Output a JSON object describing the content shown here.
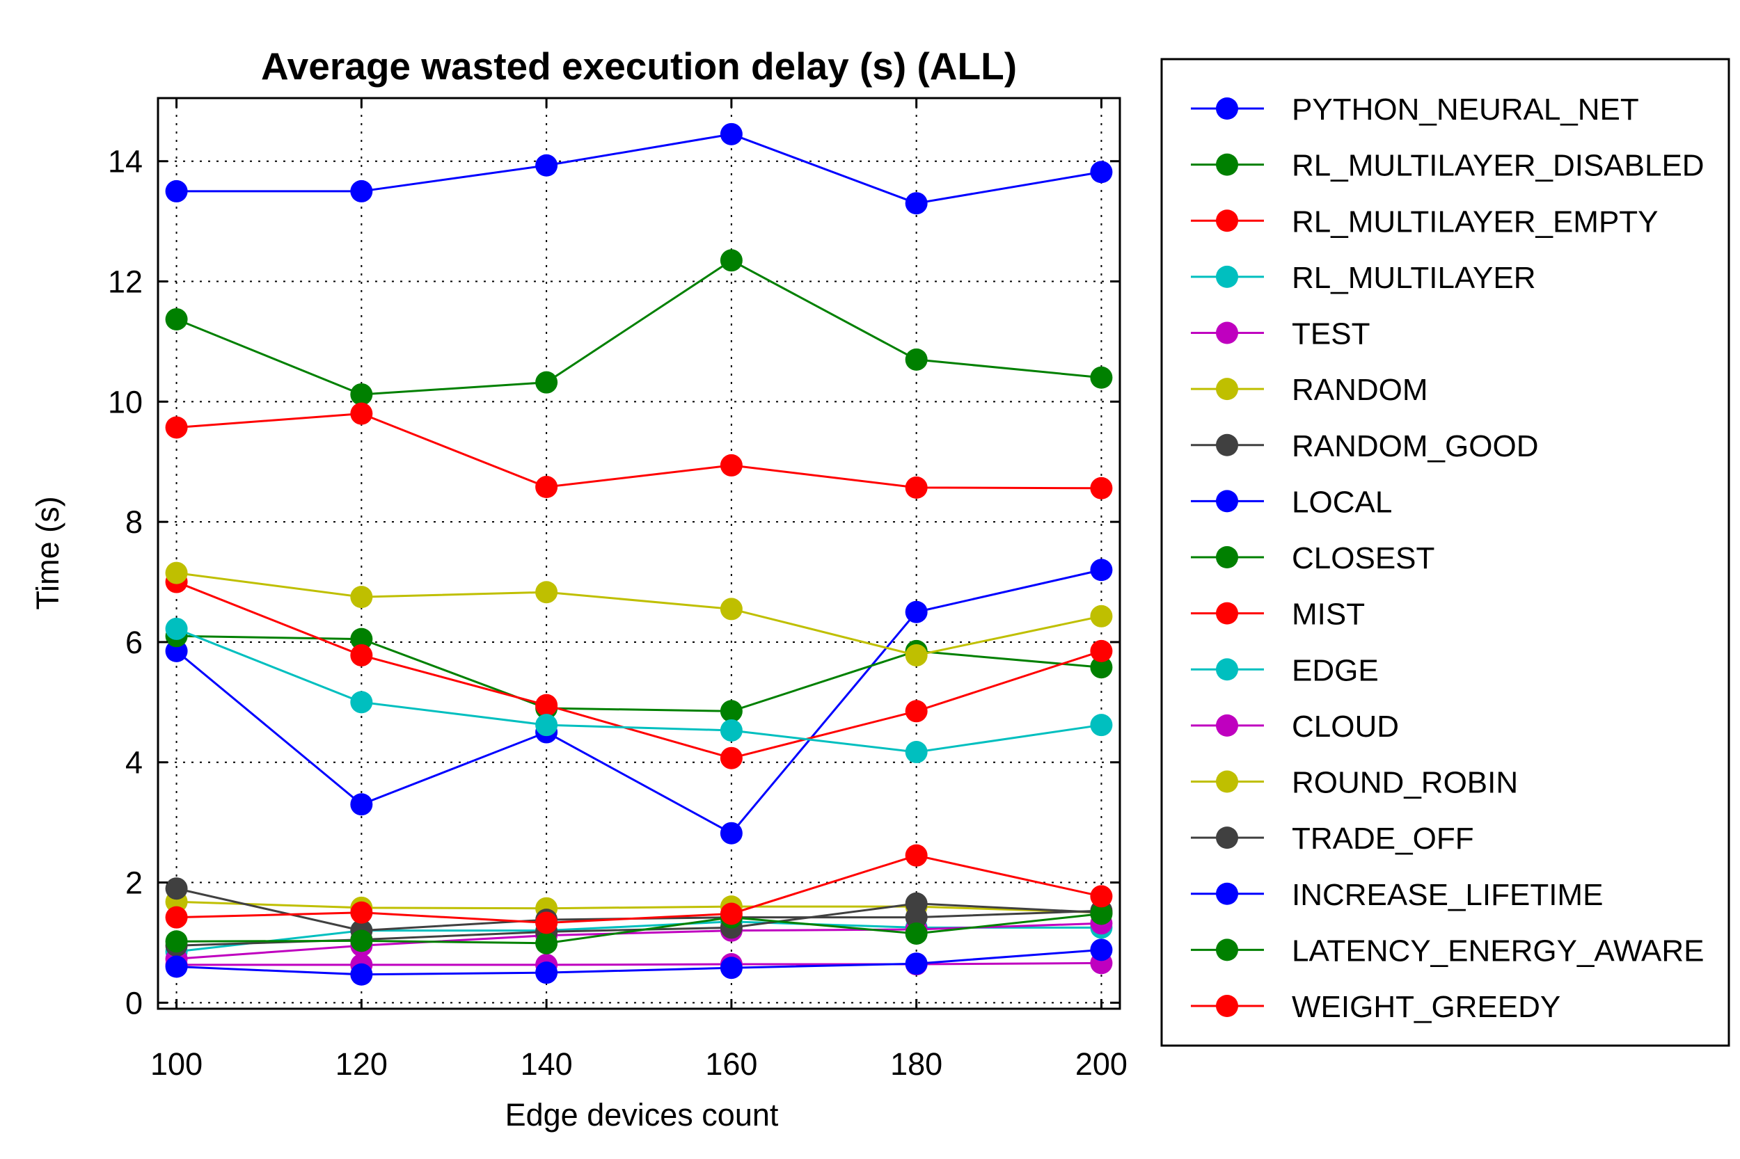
{
  "chart_data": {
    "type": "line",
    "title": "Average wasted execution delay (s) (ALL)",
    "xlabel": "Edge devices count",
    "ylabel": "Time (s)",
    "x": [
      100,
      120,
      140,
      160,
      180,
      200
    ],
    "xticks": [
      "100",
      "120",
      "140",
      "160",
      "180",
      "200"
    ],
    "yticks": [
      "0",
      "2",
      "4",
      "6",
      "8",
      "10",
      "12",
      "14"
    ],
    "xlim": [
      98,
      202
    ],
    "ylim": [
      -0.1,
      15.05
    ],
    "grid": true,
    "legend_position": "outside-right",
    "series": [
      {
        "name": "PYTHON_NEURAL_NET",
        "color": "#0000ff",
        "values": [
          13.5,
          13.5,
          13.93,
          14.45,
          13.3,
          13.82
        ]
      },
      {
        "name": "RL_MULTILAYER_DISABLED",
        "color": "#008000",
        "values": [
          11.37,
          10.12,
          10.32,
          12.35,
          10.7,
          10.4
        ]
      },
      {
        "name": "RL_MULTILAYER_EMPTY",
        "color": "#ff0000",
        "values": [
          9.57,
          9.8,
          8.58,
          8.94,
          8.57,
          8.56
        ]
      },
      {
        "name": "RL_MULTILAYER",
        "color": "#00bfbf",
        "values": [
          0.85,
          1.2,
          1.2,
          1.35,
          1.25,
          1.25
        ]
      },
      {
        "name": "TEST",
        "color": "#bf00bf",
        "values": [
          0.73,
          0.95,
          1.12,
          1.2,
          1.22,
          1.32
        ]
      },
      {
        "name": "RANDOM",
        "color": "#bfbf00",
        "values": [
          1.68,
          1.58,
          1.57,
          1.6,
          1.6,
          1.5
        ]
      },
      {
        "name": "RANDOM_GOOD",
        "color": "#404040",
        "values": [
          1.9,
          1.2,
          1.38,
          1.42,
          1.42,
          1.53
        ]
      },
      {
        "name": "LOCAL",
        "color": "#0000ff",
        "values": [
          5.85,
          3.3,
          4.5,
          2.82,
          6.5,
          7.2
        ]
      },
      {
        "name": "CLOSEST",
        "color": "#008000",
        "values": [
          6.1,
          6.05,
          4.9,
          4.85,
          5.85,
          5.58
        ]
      },
      {
        "name": "MIST",
        "color": "#ff0000",
        "values": [
          7.0,
          5.78,
          4.95,
          4.07,
          4.85,
          5.85
        ]
      },
      {
        "name": "EDGE",
        "color": "#00bfbf",
        "values": [
          6.22,
          5.0,
          4.62,
          4.53,
          4.17,
          4.62
        ]
      },
      {
        "name": "CLOUD",
        "color": "#bf00bf",
        "values": [
          0.63,
          0.63,
          0.63,
          0.64,
          0.64,
          0.66
        ]
      },
      {
        "name": "ROUND_ROBIN",
        "color": "#bfbf00",
        "values": [
          7.15,
          6.75,
          6.83,
          6.55,
          5.78,
          6.43
        ]
      },
      {
        "name": "TRADE_OFF",
        "color": "#404040",
        "values": [
          0.95,
          1.05,
          1.18,
          1.25,
          1.65,
          1.5
        ]
      },
      {
        "name": "INCREASE_LIFETIME",
        "color": "#0000ff",
        "values": [
          0.6,
          0.47,
          0.5,
          0.58,
          0.65,
          0.88
        ]
      },
      {
        "name": "LATENCY_ENERGY_AWARE",
        "color": "#008000",
        "values": [
          1.02,
          1.03,
          0.99,
          1.42,
          1.15,
          1.48
        ]
      },
      {
        "name": "WEIGHT_GREEDY",
        "color": "#ff0000",
        "values": [
          1.42,
          1.5,
          1.33,
          1.48,
          2.45,
          1.77
        ]
      }
    ]
  }
}
